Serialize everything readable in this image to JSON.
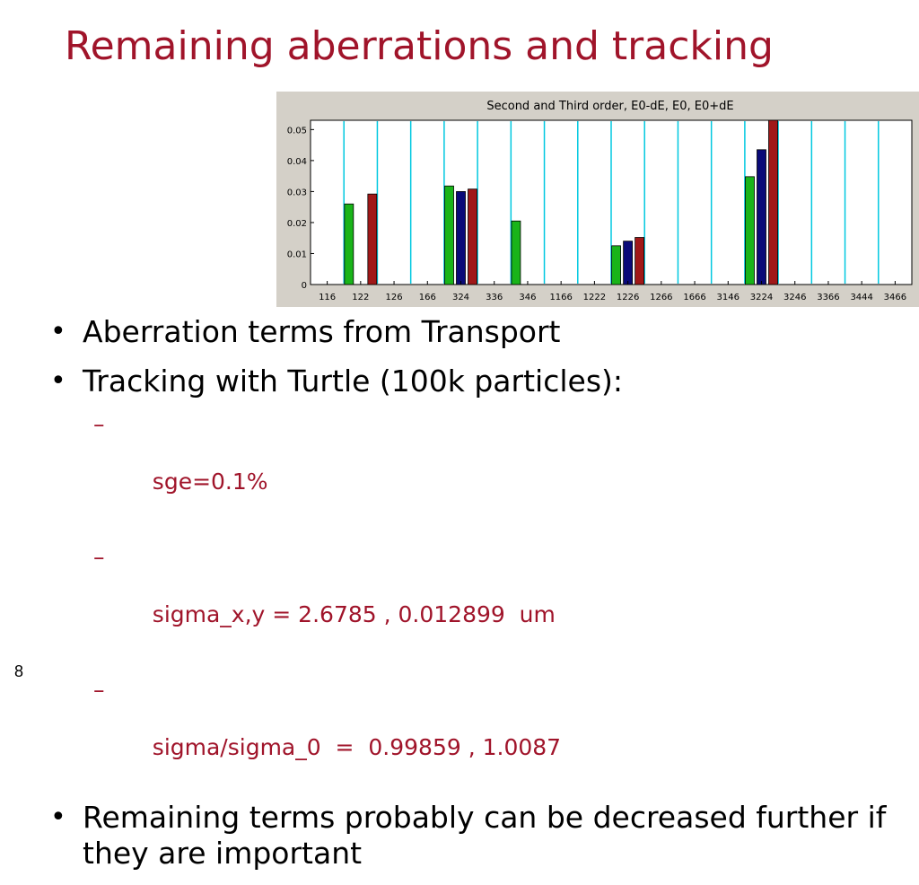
{
  "slide": {
    "title": "Remaining aberrations and tracking",
    "number": "8",
    "colors": {
      "title": "#a0142a",
      "subbullet": "#a0142a",
      "text": "#000000"
    }
  },
  "bullets": [
    {
      "text": "Aberration terms from Transport",
      "marker": "•"
    },
    {
      "text": "Tracking with Turtle (100k particles):",
      "marker": "•",
      "subitems": [
        {
          "marker": "–",
          "text": "sge=0.1%"
        },
        {
          "marker": "–",
          "text": "sigma_x,y = 2.6785 , 0.012899  um"
        },
        {
          "marker": "–",
          "text": "sigma/sigma_0  =  0.99859 , 1.0087"
        }
      ]
    },
    {
      "text": "Remaining terms probably can be decreased further if they are important",
      "marker": "•"
    }
  ],
  "chart_data": {
    "type": "bar",
    "title": "Second and Third order, E0-dE, E0, E0+dE",
    "categories": [
      "116",
      "122",
      "126",
      "166",
      "324",
      "336",
      "346",
      "1166",
      "1222",
      "1226",
      "1266",
      "1666",
      "3146",
      "3224",
      "3246",
      "3366",
      "3444",
      "3466"
    ],
    "series": [
      {
        "color": "#19b419",
        "values": [
          0,
          0.026,
          0,
          0,
          0.0318,
          0,
          0.0205,
          0,
          0,
          0.0125,
          0,
          0,
          0,
          0.0348,
          0,
          0,
          0,
          0
        ]
      },
      {
        "color": "#0a0a78",
        "values": [
          0,
          0,
          0,
          0,
          0.03,
          0,
          0,
          0,
          0,
          0.014,
          0,
          0,
          0,
          0.0435,
          0,
          0,
          0,
          0
        ]
      },
      {
        "color": "#a01818",
        "values": [
          0,
          0.0292,
          0,
          0,
          0.0308,
          0,
          0,
          0,
          0,
          0.0152,
          0,
          0,
          0,
          0.054,
          0,
          0,
          0,
          0
        ]
      }
    ],
    "yticks": [
      "0",
      "0.01",
      "0.02",
      "0.03",
      "0.04",
      "0.05"
    ],
    "ylim": [
      0,
      0.053
    ],
    "grid": "vertical separators between categories",
    "colors": {
      "separator": "#00c8e0",
      "panel": "#d4d0c8",
      "plot_bg": "#ffffff"
    }
  }
}
